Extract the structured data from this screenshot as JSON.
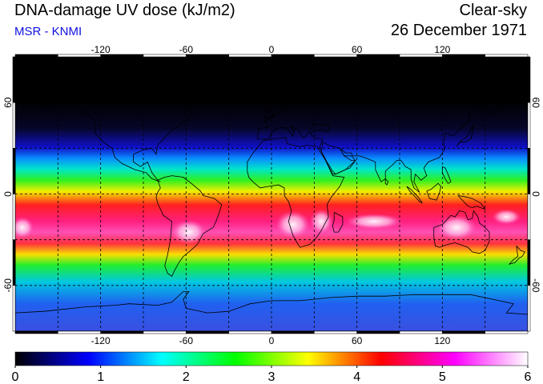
{
  "header": {
    "title": "DNA-damage UV dose (kJ/m2)",
    "subtitle": "MSR - KNMI",
    "mode": "Clear-sky",
    "date": "26 December 1971"
  },
  "map": {
    "projection": "equirectangular",
    "lon_range": [
      -180,
      180
    ],
    "lat_range": [
      -90,
      90
    ],
    "lon_ticks": [
      -120,
      -60,
      0,
      60,
      120
    ],
    "lat_ticks": [
      60,
      0,
      -60
    ],
    "lon_tick_labels": [
      "-120",
      "-60",
      "0",
      "60",
      "120"
    ],
    "lat_tick_labels": [
      "60",
      "0",
      "-60"
    ],
    "gridlines": "dashed",
    "grid_spacing_deg": 30,
    "field": "UV dose, maximum over the Southern Hemisphere subtropics (austral summer)"
  },
  "colorbar": {
    "min": 0,
    "max": 6,
    "tick_labels": [
      "0",
      "1",
      "2",
      "3",
      "4",
      "5",
      "6"
    ],
    "colors": [
      "#000000",
      "#0000ff",
      "#00ffff",
      "#00ff00",
      "#ffff00",
      "#ff0000",
      "#ff00ff",
      "#ffffff"
    ]
  }
}
